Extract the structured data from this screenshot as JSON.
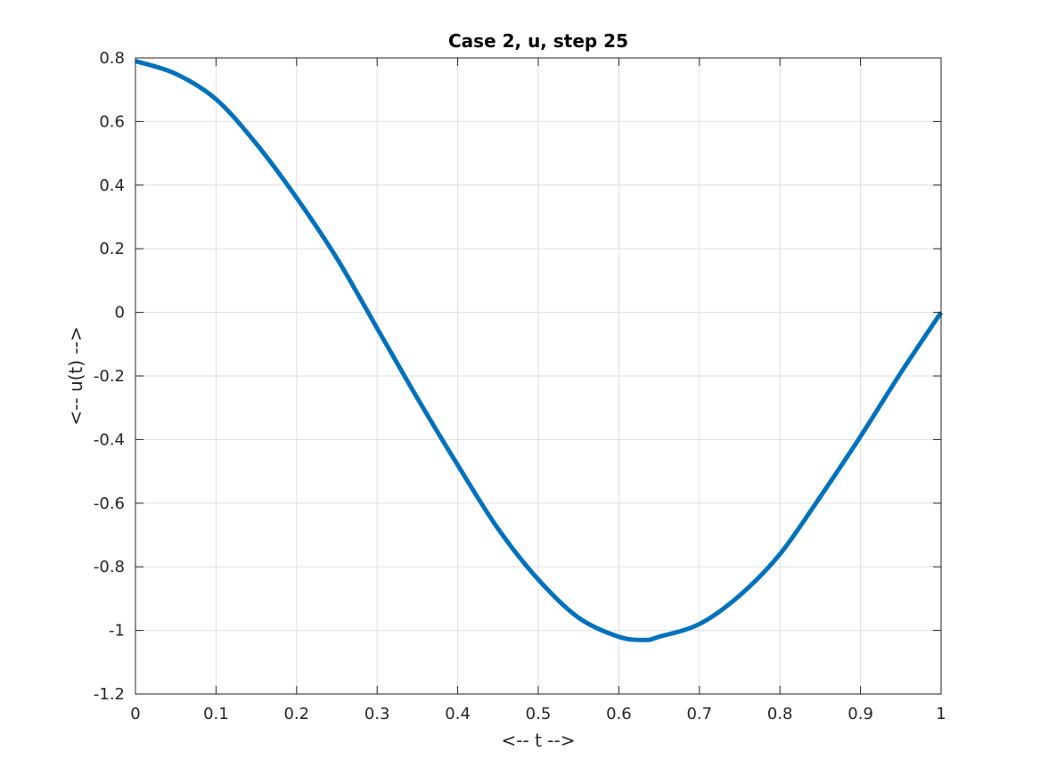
{
  "chart_data": {
    "type": "line",
    "title": "Case 2, u, step 25",
    "xlabel": "<-- t -->",
    "ylabel": "<-- u(t) -->",
    "xlim": [
      0,
      1
    ],
    "ylim": [
      -1.2,
      0.8
    ],
    "grid": true,
    "line_color": "#0072BD",
    "x_ticks": [
      0,
      0.1,
      0.2,
      0.3,
      0.4,
      0.5,
      0.6,
      0.7,
      0.8,
      0.9,
      1
    ],
    "x_tick_labels": [
      "0",
      "0.1",
      "0.2",
      "0.3",
      "0.4",
      "0.5",
      "0.6",
      "0.7",
      "0.8",
      "0.9",
      "1"
    ],
    "y_ticks": [
      0.8,
      0.6,
      0.4,
      0.2,
      0,
      -0.2,
      -0.4,
      -0.6,
      -0.8,
      -1,
      -1.2
    ],
    "y_tick_labels": [
      "0.8",
      "0.6",
      "0.4",
      "0.2",
      "0",
      "-0.2",
      "-0.4",
      "-0.6",
      "-0.8",
      "-1",
      "-1.2"
    ],
    "series": [
      {
        "x": [
          0,
          0.05,
          0.1,
          0.15,
          0.2,
          0.25,
          0.3,
          0.35,
          0.4,
          0.45,
          0.5,
          0.55,
          0.6,
          0.633,
          0.65,
          0.7,
          0.75,
          0.8,
          0.85,
          0.9,
          0.95,
          1.0
        ],
        "y": [
          0.79,
          0.75,
          0.67,
          0.53,
          0.36,
          0.17,
          -0.05,
          -0.27,
          -0.48,
          -0.68,
          -0.84,
          -0.96,
          -1.02,
          -1.03,
          -1.02,
          -0.98,
          -0.89,
          -0.76,
          -0.58,
          -0.39,
          -0.19,
          0.0
        ]
      }
    ]
  }
}
